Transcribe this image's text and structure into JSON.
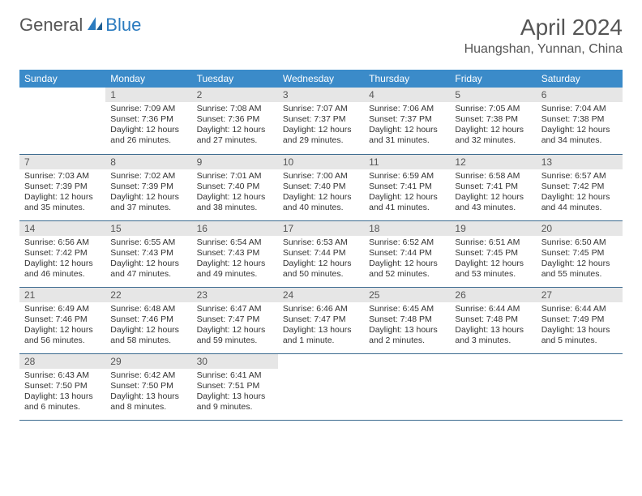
{
  "logo": {
    "text1": "General",
    "text2": "Blue"
  },
  "title": "April 2024",
  "location": "Huangshan, Yunnan, China",
  "colors": {
    "header_bg": "#3b8bc9",
    "daynum_bg": "#e6e6e6",
    "border": "#3b6a8f",
    "logo_blue": "#2b7bbf",
    "text": "#555555"
  },
  "dow": [
    "Sunday",
    "Monday",
    "Tuesday",
    "Wednesday",
    "Thursday",
    "Friday",
    "Saturday"
  ],
  "weeks": [
    [
      null,
      {
        "n": "1",
        "sr": "Sunrise: 7:09 AM",
        "ss": "Sunset: 7:36 PM",
        "d1": "Daylight: 12 hours",
        "d2": "and 26 minutes."
      },
      {
        "n": "2",
        "sr": "Sunrise: 7:08 AM",
        "ss": "Sunset: 7:36 PM",
        "d1": "Daylight: 12 hours",
        "d2": "and 27 minutes."
      },
      {
        "n": "3",
        "sr": "Sunrise: 7:07 AM",
        "ss": "Sunset: 7:37 PM",
        "d1": "Daylight: 12 hours",
        "d2": "and 29 minutes."
      },
      {
        "n": "4",
        "sr": "Sunrise: 7:06 AM",
        "ss": "Sunset: 7:37 PM",
        "d1": "Daylight: 12 hours",
        "d2": "and 31 minutes."
      },
      {
        "n": "5",
        "sr": "Sunrise: 7:05 AM",
        "ss": "Sunset: 7:38 PM",
        "d1": "Daylight: 12 hours",
        "d2": "and 32 minutes."
      },
      {
        "n": "6",
        "sr": "Sunrise: 7:04 AM",
        "ss": "Sunset: 7:38 PM",
        "d1": "Daylight: 12 hours",
        "d2": "and 34 minutes."
      }
    ],
    [
      {
        "n": "7",
        "sr": "Sunrise: 7:03 AM",
        "ss": "Sunset: 7:39 PM",
        "d1": "Daylight: 12 hours",
        "d2": "and 35 minutes."
      },
      {
        "n": "8",
        "sr": "Sunrise: 7:02 AM",
        "ss": "Sunset: 7:39 PM",
        "d1": "Daylight: 12 hours",
        "d2": "and 37 minutes."
      },
      {
        "n": "9",
        "sr": "Sunrise: 7:01 AM",
        "ss": "Sunset: 7:40 PM",
        "d1": "Daylight: 12 hours",
        "d2": "and 38 minutes."
      },
      {
        "n": "10",
        "sr": "Sunrise: 7:00 AM",
        "ss": "Sunset: 7:40 PM",
        "d1": "Daylight: 12 hours",
        "d2": "and 40 minutes."
      },
      {
        "n": "11",
        "sr": "Sunrise: 6:59 AM",
        "ss": "Sunset: 7:41 PM",
        "d1": "Daylight: 12 hours",
        "d2": "and 41 minutes."
      },
      {
        "n": "12",
        "sr": "Sunrise: 6:58 AM",
        "ss": "Sunset: 7:41 PM",
        "d1": "Daylight: 12 hours",
        "d2": "and 43 minutes."
      },
      {
        "n": "13",
        "sr": "Sunrise: 6:57 AM",
        "ss": "Sunset: 7:42 PM",
        "d1": "Daylight: 12 hours",
        "d2": "and 44 minutes."
      }
    ],
    [
      {
        "n": "14",
        "sr": "Sunrise: 6:56 AM",
        "ss": "Sunset: 7:42 PM",
        "d1": "Daylight: 12 hours",
        "d2": "and 46 minutes."
      },
      {
        "n": "15",
        "sr": "Sunrise: 6:55 AM",
        "ss": "Sunset: 7:43 PM",
        "d1": "Daylight: 12 hours",
        "d2": "and 47 minutes."
      },
      {
        "n": "16",
        "sr": "Sunrise: 6:54 AM",
        "ss": "Sunset: 7:43 PM",
        "d1": "Daylight: 12 hours",
        "d2": "and 49 minutes."
      },
      {
        "n": "17",
        "sr": "Sunrise: 6:53 AM",
        "ss": "Sunset: 7:44 PM",
        "d1": "Daylight: 12 hours",
        "d2": "and 50 minutes."
      },
      {
        "n": "18",
        "sr": "Sunrise: 6:52 AM",
        "ss": "Sunset: 7:44 PM",
        "d1": "Daylight: 12 hours",
        "d2": "and 52 minutes."
      },
      {
        "n": "19",
        "sr": "Sunrise: 6:51 AM",
        "ss": "Sunset: 7:45 PM",
        "d1": "Daylight: 12 hours",
        "d2": "and 53 minutes."
      },
      {
        "n": "20",
        "sr": "Sunrise: 6:50 AM",
        "ss": "Sunset: 7:45 PM",
        "d1": "Daylight: 12 hours",
        "d2": "and 55 minutes."
      }
    ],
    [
      {
        "n": "21",
        "sr": "Sunrise: 6:49 AM",
        "ss": "Sunset: 7:46 PM",
        "d1": "Daylight: 12 hours",
        "d2": "and 56 minutes."
      },
      {
        "n": "22",
        "sr": "Sunrise: 6:48 AM",
        "ss": "Sunset: 7:46 PM",
        "d1": "Daylight: 12 hours",
        "d2": "and 58 minutes."
      },
      {
        "n": "23",
        "sr": "Sunrise: 6:47 AM",
        "ss": "Sunset: 7:47 PM",
        "d1": "Daylight: 12 hours",
        "d2": "and 59 minutes."
      },
      {
        "n": "24",
        "sr": "Sunrise: 6:46 AM",
        "ss": "Sunset: 7:47 PM",
        "d1": "Daylight: 13 hours",
        "d2": "and 1 minute."
      },
      {
        "n": "25",
        "sr": "Sunrise: 6:45 AM",
        "ss": "Sunset: 7:48 PM",
        "d1": "Daylight: 13 hours",
        "d2": "and 2 minutes."
      },
      {
        "n": "26",
        "sr": "Sunrise: 6:44 AM",
        "ss": "Sunset: 7:48 PM",
        "d1": "Daylight: 13 hours",
        "d2": "and 3 minutes."
      },
      {
        "n": "27",
        "sr": "Sunrise: 6:44 AM",
        "ss": "Sunset: 7:49 PM",
        "d1": "Daylight: 13 hours",
        "d2": "and 5 minutes."
      }
    ],
    [
      {
        "n": "28",
        "sr": "Sunrise: 6:43 AM",
        "ss": "Sunset: 7:50 PM",
        "d1": "Daylight: 13 hours",
        "d2": "and 6 minutes."
      },
      {
        "n": "29",
        "sr": "Sunrise: 6:42 AM",
        "ss": "Sunset: 7:50 PM",
        "d1": "Daylight: 13 hours",
        "d2": "and 8 minutes."
      },
      {
        "n": "30",
        "sr": "Sunrise: 6:41 AM",
        "ss": "Sunset: 7:51 PM",
        "d1": "Daylight: 13 hours",
        "d2": "and 9 minutes."
      },
      null,
      null,
      null,
      null
    ]
  ]
}
